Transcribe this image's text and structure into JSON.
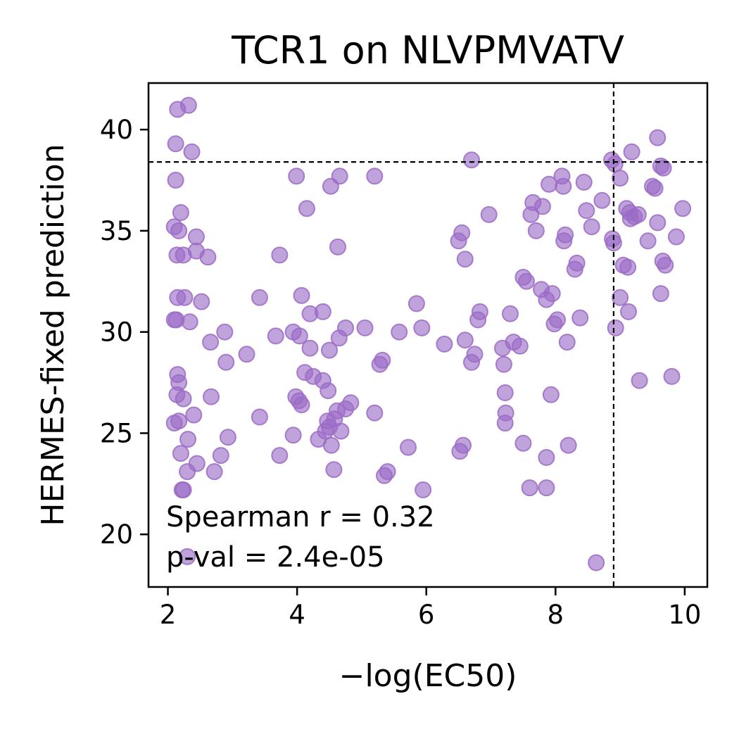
{
  "chart_data": {
    "type": "scatter",
    "title": "TCR1 on NLVPMVATV",
    "xlabel": "−log(EC50)",
    "ylabel": "HERMES-fixed prediction",
    "xlim": [
      1.7,
      10.35
    ],
    "ylim": [
      17.4,
      42.3
    ],
    "xticks": [
      2,
      4,
      6,
      8,
      10
    ],
    "yticks": [
      20,
      25,
      30,
      35,
      40
    ],
    "xtick_labels": [
      "2",
      "4",
      "6",
      "8",
      "10"
    ],
    "ytick_labels": [
      "20",
      "25",
      "30",
      "35",
      "40"
    ],
    "grid": false,
    "point_color": "#9b6bc6",
    "threshold_lines": {
      "x": 8.9,
      "y": 38.4
    },
    "annotation": {
      "line1": "Spearman r = 0.32",
      "line2": "p-val = 2.4e-05"
    },
    "points": [
      [
        2.15,
        41.0
      ],
      [
        2.32,
        41.2
      ],
      [
        2.12,
        39.3
      ],
      [
        2.37,
        38.9
      ],
      [
        2.12,
        37.5
      ],
      [
        2.2,
        35.9
      ],
      [
        2.1,
        35.2
      ],
      [
        2.17,
        35.0
      ],
      [
        2.44,
        34.7
      ],
      [
        2.14,
        33.8
      ],
      [
        2.24,
        33.8
      ],
      [
        2.44,
        34.0
      ],
      [
        2.62,
        33.7
      ],
      [
        2.15,
        31.7
      ],
      [
        2.26,
        31.7
      ],
      [
        2.52,
        31.5
      ],
      [
        2.1,
        30.6
      ],
      [
        2.13,
        30.6
      ],
      [
        2.34,
        30.5
      ],
      [
        2.66,
        29.5
      ],
      [
        2.88,
        30.0
      ],
      [
        2.15,
        27.9
      ],
      [
        2.17,
        27.5
      ],
      [
        2.14,
        26.9
      ],
      [
        2.24,
        26.7
      ],
      [
        2.9,
        28.5
      ],
      [
        2.67,
        26.8
      ],
      [
        2.1,
        25.5
      ],
      [
        2.17,
        25.6
      ],
      [
        2.4,
        25.9
      ],
      [
        2.31,
        24.7
      ],
      [
        2.2,
        24.0
      ],
      [
        2.45,
        23.5
      ],
      [
        2.3,
        23.1
      ],
      [
        2.72,
        23.1
      ],
      [
        2.82,
        23.9
      ],
      [
        2.93,
        24.8
      ],
      [
        2.22,
        22.2
      ],
      [
        2.24,
        22.2
      ],
      [
        2.3,
        18.9
      ],
      [
        3.42,
        31.7
      ],
      [
        3.73,
        33.8
      ],
      [
        3.22,
        28.9
      ],
      [
        3.67,
        29.8
      ],
      [
        3.42,
        25.8
      ],
      [
        3.73,
        23.9
      ],
      [
        3.94,
        30.0
      ],
      [
        4.04,
        29.8
      ],
      [
        3.99,
        37.7
      ],
      [
        4.15,
        36.1
      ],
      [
        4.07,
        31.8
      ],
      [
        4.2,
        30.9
      ],
      [
        4.2,
        29.2
      ],
      [
        4.4,
        31.0
      ],
      [
        4.12,
        28.0
      ],
      [
        4.25,
        27.8
      ],
      [
        4.4,
        27.6
      ],
      [
        3.98,
        26.8
      ],
      [
        4.03,
        26.6
      ],
      [
        4.07,
        26.4
      ],
      [
        3.94,
        24.9
      ],
      [
        4.33,
        24.7
      ],
      [
        4.44,
        25.1
      ],
      [
        4.47,
        25.6
      ],
      [
        4.5,
        25.3
      ],
      [
        4.53,
        24.4
      ],
      [
        4.57,
        23.2
      ],
      [
        4.62,
        26.1
      ],
      [
        4.58,
        25.7
      ],
      [
        4.68,
        25.1
      ],
      [
        4.75,
        26.2
      ],
      [
        4.83,
        26.5
      ],
      [
        4.48,
        27.1
      ],
      [
        4.5,
        29.1
      ],
      [
        4.65,
        29.7
      ],
      [
        4.75,
        30.2
      ],
      [
        4.52,
        37.2
      ],
      [
        4.66,
        37.7
      ],
      [
        4.63,
        34.2
      ],
      [
        5.05,
        30.2
      ],
      [
        5.2,
        37.7
      ],
      [
        5.2,
        26.0
      ],
      [
        5.28,
        28.4
      ],
      [
        5.32,
        28.6
      ],
      [
        5.35,
        22.9
      ],
      [
        5.4,
        23.1
      ],
      [
        5.58,
        30.0
      ],
      [
        5.72,
        24.3
      ],
      [
        5.85,
        31.4
      ],
      [
        5.93,
        30.2
      ],
      [
        5.95,
        22.2
      ],
      [
        6.28,
        29.4
      ],
      [
        6.5,
        34.5
      ],
      [
        6.55,
        34.9
      ],
      [
        6.6,
        33.6
      ],
      [
        6.52,
        24.1
      ],
      [
        6.57,
        24.4
      ],
      [
        6.6,
        29.6
      ],
      [
        6.7,
        28.5
      ],
      [
        6.75,
        28.9
      ],
      [
        6.8,
        30.6
      ],
      [
        6.83,
        31.0
      ],
      [
        6.7,
        38.5
      ],
      [
        6.97,
        35.8
      ],
      [
        7.18,
        29.2
      ],
      [
        7.2,
        28.4
      ],
      [
        7.22,
        27.0
      ],
      [
        7.23,
        26.0
      ],
      [
        7.22,
        25.5
      ],
      [
        7.3,
        30.9
      ],
      [
        7.35,
        29.5
      ],
      [
        7.45,
        29.3
      ],
      [
        7.5,
        32.7
      ],
      [
        7.55,
        32.5
      ],
      [
        7.5,
        24.5
      ],
      [
        7.6,
        22.3
      ],
      [
        7.65,
        36.4
      ],
      [
        7.62,
        35.8
      ],
      [
        7.7,
        35.0
      ],
      [
        7.8,
        36.2
      ],
      [
        7.9,
        37.3
      ],
      [
        7.78,
        32.1
      ],
      [
        7.86,
        31.6
      ],
      [
        7.95,
        31.9
      ],
      [
        7.98,
        30.4
      ],
      [
        8.03,
        30.6
      ],
      [
        7.86,
        23.8
      ],
      [
        7.86,
        22.3
      ],
      [
        7.93,
        26.9
      ],
      [
        8.1,
        37.7
      ],
      [
        8.12,
        37.2
      ],
      [
        8.13,
        34.5
      ],
      [
        8.15,
        34.8
      ],
      [
        8.18,
        29.5
      ],
      [
        8.2,
        24.4
      ],
      [
        8.3,
        33.1
      ],
      [
        8.33,
        33.4
      ],
      [
        8.38,
        30.7
      ],
      [
        8.44,
        37.4
      ],
      [
        8.48,
        36.0
      ],
      [
        8.56,
        35.2
      ],
      [
        8.72,
        36.5
      ],
      [
        8.63,
        18.6
      ],
      [
        8.87,
        38.5
      ],
      [
        8.92,
        38.3
      ],
      [
        8.88,
        34.6
      ],
      [
        8.9,
        34.4
      ],
      [
        8.93,
        30.2
      ],
      [
        9.0,
        37.6
      ],
      [
        9.0,
        31.7
      ],
      [
        9.05,
        33.3
      ],
      [
        9.12,
        33.2
      ],
      [
        9.13,
        31.0
      ],
      [
        9.18,
        38.9
      ],
      [
        9.1,
        36.1
      ],
      [
        9.15,
        35.9
      ],
      [
        9.16,
        35.6
      ],
      [
        9.22,
        35.7
      ],
      [
        9.28,
        35.8
      ],
      [
        9.3,
        27.6
      ],
      [
        9.43,
        34.5
      ],
      [
        9.5,
        37.2
      ],
      [
        9.54,
        37.1
      ],
      [
        9.58,
        39.6
      ],
      [
        9.58,
        35.4
      ],
      [
        9.63,
        38.2
      ],
      [
        9.67,
        38.1
      ],
      [
        9.66,
        33.5
      ],
      [
        9.7,
        33.3
      ],
      [
        9.63,
        31.9
      ],
      [
        9.8,
        27.8
      ],
      [
        9.87,
        34.7
      ],
      [
        9.97,
        36.1
      ]
    ]
  }
}
